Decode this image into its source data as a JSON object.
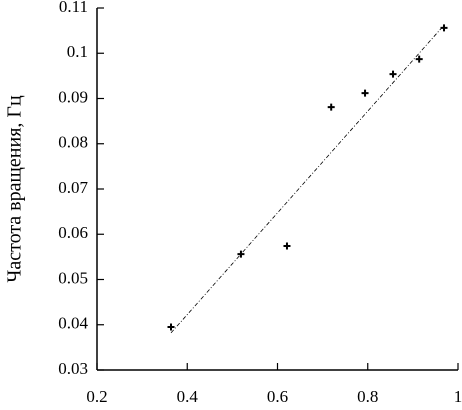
{
  "chart_data": {
    "type": "scatter",
    "y_label": "Частота вращения, Гц",
    "x": [
      0.364,
      0.519,
      0.621,
      0.719,
      0.794,
      0.856,
      0.914,
      0.969
    ],
    "y": [
      0.0395,
      0.0556,
      0.0574,
      0.0881,
      0.0912,
      0.0954,
      0.0987,
      0.1056
    ],
    "color": "#000000",
    "fit": {
      "x": [
        0.364,
        0.969
      ],
      "y": [
        0.0382,
        0.1062
      ]
    },
    "xlim": [
      0.2,
      1
    ],
    "ylim": [
      0.03,
      0.11
    ],
    "xticks": [
      0.2,
      0.4,
      0.6,
      0.8,
      1
    ],
    "yticks": [
      0.03,
      0.04,
      0.05,
      0.06,
      0.07,
      0.08,
      0.09,
      0.1,
      0.11
    ]
  }
}
